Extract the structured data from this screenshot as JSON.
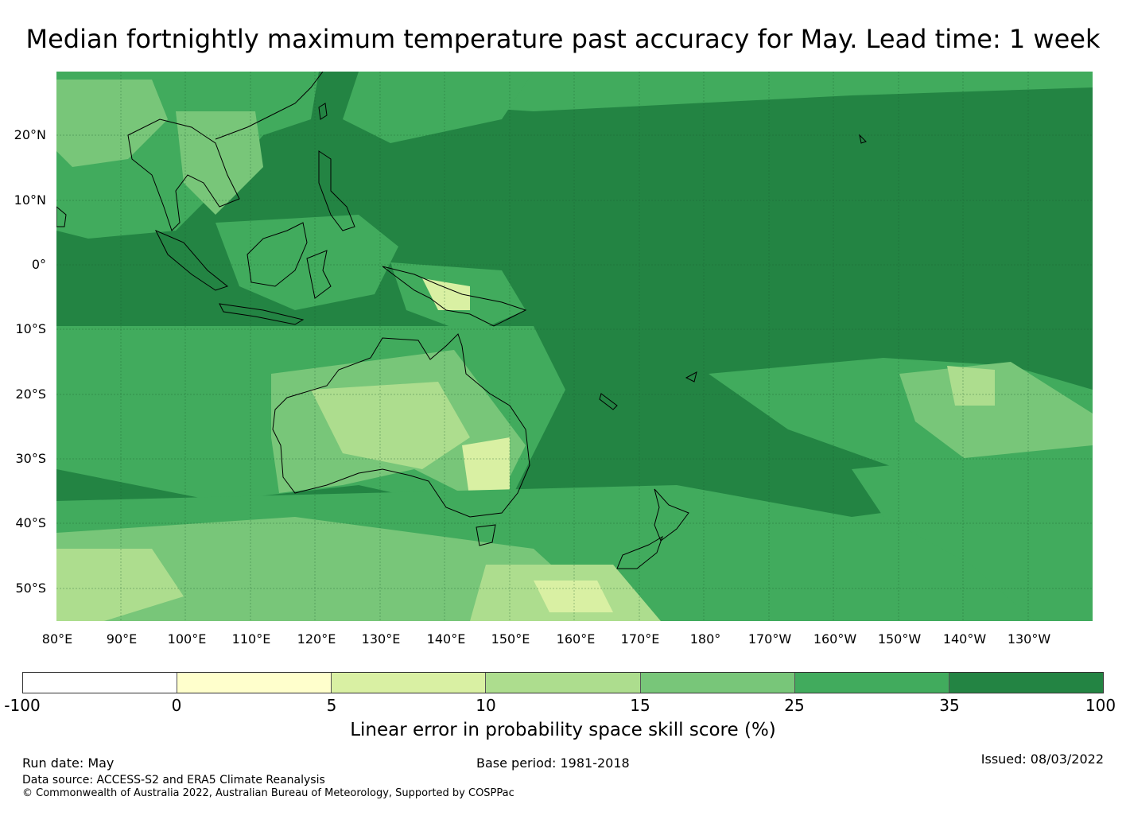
{
  "title": "Median fortnightly maximum temperature past accuracy for May. Lead time: 1 week",
  "lat_labels": [
    "20°N",
    "10°N",
    "0°",
    "10°S",
    "20°S",
    "30°S",
    "40°S",
    "50°S"
  ],
  "lon_labels": [
    "80°E",
    "90°E",
    "100°E",
    "110°E",
    "120°E",
    "130°E",
    "140°E",
    "150°E",
    "160°E",
    "170°E",
    "180°",
    "170°W",
    "160°W",
    "150°W",
    "140°W",
    "130°W"
  ],
  "colorbar": {
    "colors": [
      "#ffffff",
      "#ffffcc",
      "#d9f0a3",
      "#addd8e",
      "#78c679",
      "#41ab5d",
      "#238443"
    ],
    "ticks": [
      "-100",
      "0",
      "5",
      "10",
      "15",
      "25",
      "35",
      "100"
    ],
    "label": "Linear error in probability space skill score (%)"
  },
  "footer": {
    "run_date": "Run date: May",
    "base_period": "Base period: 1981-2018",
    "issued": "Issued: 08/03/2022",
    "data_source": "Data source: ACCESS-S2 and ERA5 Climate Reanalysis",
    "copyright": "© Commonwealth of Australia 2022, Australian Bureau of Meteorology, Supported by COSPPac"
  }
}
